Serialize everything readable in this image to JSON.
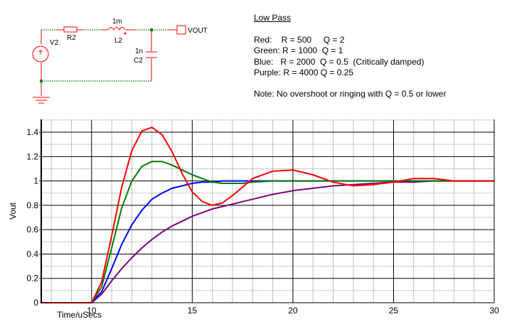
{
  "schematic": {
    "components": [
      {
        "ref": "V2",
        "type": "voltage-source"
      },
      {
        "ref": "R2",
        "type": "resistor"
      },
      {
        "ref": "L2",
        "type": "inductor",
        "value": "1m"
      },
      {
        "ref": "C2",
        "type": "capacitor",
        "value": "1n"
      },
      {
        "ref": "VOUT",
        "type": "output-probe"
      }
    ],
    "labels": {
      "v2": "V2",
      "r2": "R2",
      "l2": "L2",
      "l2_value": "1m",
      "c2": "C2",
      "c2_value": "1n",
      "vout": "VOUT"
    }
  },
  "notes": {
    "title": "Low Pass",
    "lines": [
      "Red:    R = 500     Q = 2",
      "Green: R = 1000  Q = 1",
      "Blue:   R = 2000  Q = 0.5  (Critically damped)",
      "Purple: R = 4000 Q = 0.25"
    ],
    "note": "Note: No overshoot or ringing with Q = 0.5 or lower"
  },
  "colors": {
    "red": "#ff0000",
    "green": "#008000",
    "blue": "#0000ff",
    "purple": "#800080",
    "major_grid": "#000000",
    "minor_grid": "#c0c0c0"
  },
  "chart_data": {
    "type": "line",
    "title": "",
    "xlabel": "Time/uSecs",
    "ylabel": "Vout",
    "xlim": [
      7.5,
      30
    ],
    "ylim": [
      0,
      1.5
    ],
    "xticks": [
      10,
      15,
      20,
      25,
      30
    ],
    "yticks": [
      0,
      0.2,
      0.4,
      0.6,
      0.8,
      1,
      1.2,
      1.4
    ],
    "ytick_labels": [
      "0",
      "0.2",
      "0.4",
      "0.6",
      "0.8",
      "1",
      "1.2",
      "1.4"
    ],
    "grid": true,
    "legend": "none (colors described in notes text)",
    "x": [
      7.5,
      10,
      10.5,
      11,
      11.5,
      12,
      12.5,
      13,
      13.5,
      14,
      14.5,
      15,
      15.5,
      16,
      16.5,
      17,
      17.5,
      18,
      19,
      20,
      21,
      22,
      23,
      24,
      25,
      26,
      27,
      28,
      30
    ],
    "series": [
      {
        "name": "Red (R=500, Q=2)",
        "color": "#ff0000",
        "values": [
          0,
          0,
          0.17,
          0.55,
          0.95,
          1.25,
          1.41,
          1.44,
          1.38,
          1.24,
          1.06,
          0.91,
          0.83,
          0.8,
          0.82,
          0.88,
          0.95,
          1.02,
          1.08,
          1.09,
          1.05,
          0.99,
          0.96,
          0.97,
          0.99,
          1.02,
          1.02,
          1.0,
          1.0
        ]
      },
      {
        "name": "Green (R=1000, Q=1)",
        "color": "#008000",
        "values": [
          0,
          0,
          0.13,
          0.45,
          0.78,
          1.0,
          1.12,
          1.16,
          1.16,
          1.13,
          1.09,
          1.05,
          1.02,
          0.99,
          0.98,
          0.98,
          0.98,
          0.99,
          1.0,
          1.0,
          1.0,
          1.0,
          1.0,
          1.0,
          1.0,
          1.0,
          1.0,
          1.0,
          1.0
        ]
      },
      {
        "name": "Blue (R=2000, Q=0.5)",
        "color": "#0000ff",
        "values": [
          0,
          0,
          0.09,
          0.28,
          0.48,
          0.64,
          0.76,
          0.85,
          0.9,
          0.94,
          0.96,
          0.98,
          0.99,
          0.99,
          1.0,
          1.0,
          1.0,
          1.0,
          1.0,
          1.0,
          1.0,
          1.0,
          1.0,
          1.0,
          1.0,
          1.0,
          1.0,
          1.0,
          1.0
        ]
      },
      {
        "name": "Purple (R=4000, Q=0.25)",
        "color": "#800080",
        "values": [
          0,
          0,
          0.07,
          0.18,
          0.28,
          0.37,
          0.45,
          0.52,
          0.58,
          0.63,
          0.67,
          0.71,
          0.74,
          0.77,
          0.79,
          0.81,
          0.83,
          0.85,
          0.89,
          0.92,
          0.94,
          0.96,
          0.97,
          0.98,
          0.99,
          0.99,
          1.0,
          1.0,
          1.0
        ]
      }
    ]
  }
}
